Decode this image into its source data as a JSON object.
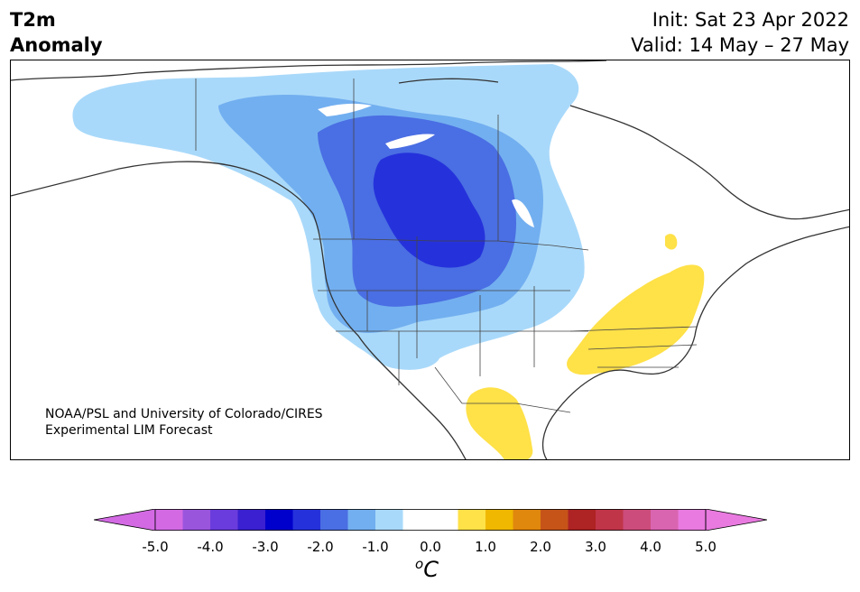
{
  "header": {
    "variable": "T2m",
    "kind": "Anomaly",
    "init": "Init: Sat 23 Apr 2022",
    "valid": "Valid: 14 May – 27 May"
  },
  "credit": {
    "line1": "NOAA/PSL and University of Colorado/CIRES",
    "line2": "Experimental LIM Forecast"
  },
  "colorbar": {
    "units_base": "C",
    "units_sup": "o",
    "ticks": [
      "-5.0",
      "-4.0",
      "-3.0",
      "-2.0",
      "-1.0",
      "0.0",
      "1.0",
      "2.0",
      "3.0",
      "4.0",
      "5.0"
    ],
    "colors": [
      "#d36ae4",
      "#9a55dd",
      "#6a3cdd",
      "#3a20d0",
      "#0000cc",
      "#2532db",
      "#4a6ee3",
      "#72aff0",
      "#a9d9fa",
      "#ffffff",
      "#ffffff",
      "#ffe148",
      "#f0b800",
      "#e0870e",
      "#c65419",
      "#ae2323",
      "#c13549",
      "#cc4c7b",
      "#d964b0",
      "#e97ae0"
    ],
    "under_color": "#d36ae4",
    "over_color": "#e97ae0"
  },
  "map": {
    "region": "North America",
    "cold_anomaly_center": "Northern Plains / Prairies",
    "warm_anomaly_regions": [
      "Southeast US / Ohio Valley",
      "South Texas / Northeast Mexico"
    ]
  }
}
